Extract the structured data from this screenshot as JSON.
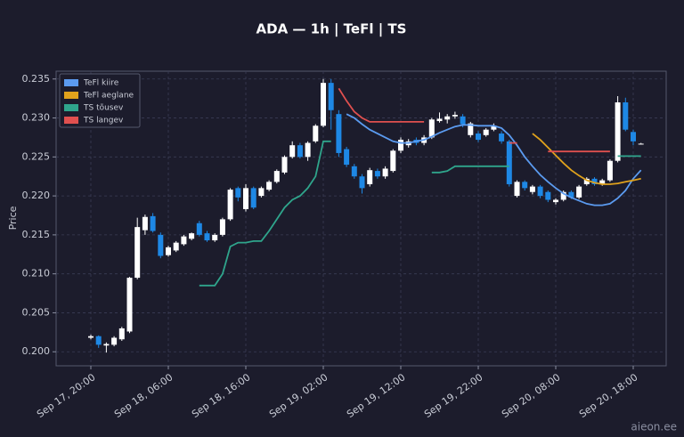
{
  "chart_data": {
    "type": "candlestick",
    "title": "ADA — 1h  |  TeFl  |  TS",
    "ylabel": "Price",
    "watermark": "aieon.ee",
    "x": [
      "Sep 17, 20:00",
      "Sep 17, 21:00",
      "Sep 17, 22:00",
      "Sep 17, 23:00",
      "Sep 18, 00:00",
      "Sep 18, 01:00",
      "Sep 18, 02:00",
      "Sep 18, 03:00",
      "Sep 18, 04:00",
      "Sep 18, 05:00",
      "Sep 18, 06:00",
      "Sep 18, 07:00",
      "Sep 18, 08:00",
      "Sep 18, 09:00",
      "Sep 18, 10:00",
      "Sep 18, 11:00",
      "Sep 18, 12:00",
      "Sep 18, 13:00",
      "Sep 18, 14:00",
      "Sep 18, 15:00",
      "Sep 18, 16:00",
      "Sep 18, 17:00",
      "Sep 18, 18:00",
      "Sep 18, 19:00",
      "Sep 18, 20:00",
      "Sep 18, 21:00",
      "Sep 18, 22:00",
      "Sep 18, 23:00",
      "Sep 19, 00:00",
      "Sep 19, 01:00",
      "Sep 19, 02:00",
      "Sep 19, 03:00",
      "Sep 19, 04:00",
      "Sep 19, 05:00",
      "Sep 19, 06:00",
      "Sep 19, 07:00",
      "Sep 19, 08:00",
      "Sep 19, 09:00",
      "Sep 19, 10:00",
      "Sep 19, 11:00",
      "Sep 19, 12:00",
      "Sep 19, 13:00",
      "Sep 19, 14:00",
      "Sep 19, 15:00",
      "Sep 19, 16:00",
      "Sep 19, 17:00",
      "Sep 19, 18:00",
      "Sep 19, 19:00",
      "Sep 19, 20:00",
      "Sep 19, 21:00",
      "Sep 19, 22:00",
      "Sep 19, 23:00",
      "Sep 20, 00:00",
      "Sep 20, 01:00",
      "Sep 20, 02:00",
      "Sep 20, 03:00",
      "Sep 20, 04:00",
      "Sep 20, 05:00",
      "Sep 20, 06:00",
      "Sep 20, 07:00",
      "Sep 20, 08:00",
      "Sep 20, 09:00",
      "Sep 20, 10:00",
      "Sep 20, 11:00",
      "Sep 20, 12:00",
      "Sep 20, 13:00",
      "Sep 20, 14:00",
      "Sep 20, 15:00",
      "Sep 20, 16:00",
      "Sep 20, 17:00",
      "Sep 20, 18:00",
      "Sep 20, 19:00"
    ],
    "open": [
      0.2018,
      0.202,
      0.2008,
      0.2009,
      0.2016,
      0.2026,
      0.2095,
      0.2156,
      0.2174,
      0.215,
      0.2124,
      0.213,
      0.2138,
      0.2145,
      0.2165,
      0.2152,
      0.2143,
      0.215,
      0.217,
      0.221,
      0.2183,
      0.221,
      0.22,
      0.2208,
      0.2218,
      0.223,
      0.225,
      0.2265,
      0.225,
      0.227,
      0.229,
      0.2345,
      0.2305,
      0.226,
      0.2238,
      0.2225,
      0.2215,
      0.2232,
      0.2225,
      0.2232,
      0.2258,
      0.2265,
      0.2272,
      0.2268,
      0.2275,
      0.2296,
      0.2298,
      0.2302,
      0.2302,
      0.2278,
      0.228,
      0.2278,
      0.2285,
      0.228,
      0.227,
      0.22,
      0.2218,
      0.2205,
      0.2212,
      0.2205,
      0.2192,
      0.2195,
      0.2205,
      0.2198,
      0.2215,
      0.2222,
      0.2215,
      0.222,
      0.2245,
      0.232,
      0.2282,
      0.2267
    ],
    "high": [
      0.2022,
      0.2021,
      0.2012,
      0.202,
      0.2032,
      0.2096,
      0.2172,
      0.2176,
      0.2178,
      0.2153,
      0.2136,
      0.2142,
      0.215,
      0.2153,
      0.2168,
      0.2155,
      0.2152,
      0.2172,
      0.221,
      0.2212,
      0.2215,
      0.2212,
      0.2212,
      0.222,
      0.2234,
      0.2252,
      0.227,
      0.2268,
      0.227,
      0.2292,
      0.235,
      0.235,
      0.231,
      0.2263,
      0.2241,
      0.2228,
      0.2236,
      0.2235,
      0.2238,
      0.226,
      0.2275,
      0.2273,
      0.2275,
      0.2278,
      0.23,
      0.2307,
      0.2305,
      0.2308,
      0.2305,
      0.2295,
      0.2283,
      0.2287,
      0.2293,
      0.2283,
      0.2272,
      0.222,
      0.222,
      0.2214,
      0.2214,
      0.2207,
      0.2197,
      0.2207,
      0.2207,
      0.2214,
      0.2224,
      0.2224,
      0.2222,
      0.2247,
      0.2328,
      0.2326,
      0.2285,
      0.2268
    ],
    "low": [
      0.2016,
      0.2005,
      0.1999,
      0.2007,
      0.2014,
      0.2024,
      0.2093,
      0.215,
      0.2153,
      0.212,
      0.2122,
      0.2128,
      0.2136,
      0.2143,
      0.2148,
      0.2141,
      0.2141,
      0.2148,
      0.2168,
      0.2193,
      0.218,
      0.2183,
      0.2198,
      0.2206,
      0.2216,
      0.2228,
      0.2248,
      0.2248,
      0.2245,
      0.2268,
      0.2288,
      0.2285,
      0.225,
      0.2237,
      0.2222,
      0.2203,
      0.2212,
      0.2222,
      0.2222,
      0.223,
      0.2255,
      0.2262,
      0.2265,
      0.2265,
      0.2273,
      0.2294,
      0.2293,
      0.2299,
      0.2288,
      0.2275,
      0.2269,
      0.2276,
      0.2283,
      0.2267,
      0.2212,
      0.2198,
      0.2207,
      0.2202,
      0.2197,
      0.2192,
      0.2189,
      0.2193,
      0.2196,
      0.2196,
      0.2213,
      0.2213,
      0.2213,
      0.2218,
      0.2243,
      0.2283,
      0.2265,
      0.2266
    ],
    "close": [
      0.202,
      0.2009,
      0.201,
      0.2018,
      0.203,
      0.2095,
      0.216,
      0.2173,
      0.2155,
      0.2123,
      0.2134,
      0.214,
      0.2148,
      0.2152,
      0.215,
      0.2143,
      0.215,
      0.217,
      0.2208,
      0.2198,
      0.221,
      0.2185,
      0.221,
      0.2218,
      0.2232,
      0.225,
      0.2265,
      0.225,
      0.2268,
      0.229,
      0.2345,
      0.231,
      0.2255,
      0.224,
      0.2225,
      0.221,
      0.2233,
      0.2225,
      0.2235,
      0.2258,
      0.2272,
      0.227,
      0.2268,
      0.2275,
      0.2298,
      0.2299,
      0.2302,
      0.2304,
      0.2292,
      0.2293,
      0.2272,
      0.2285,
      0.229,
      0.227,
      0.2215,
      0.2218,
      0.221,
      0.2212,
      0.22,
      0.2195,
      0.2195,
      0.2205,
      0.2198,
      0.2212,
      0.2222,
      0.2215,
      0.222,
      0.2245,
      0.232,
      0.2285,
      0.227,
      0.2267
    ],
    "up_color": "#ffffff",
    "down_color": "#1e88e5",
    "series": [
      {
        "name": "TeFl kiire",
        "color": "#5b9bf0",
        "values": [
          null,
          null,
          null,
          null,
          null,
          null,
          null,
          null,
          null,
          null,
          null,
          null,
          null,
          null,
          null,
          null,
          null,
          null,
          null,
          null,
          null,
          null,
          null,
          null,
          null,
          null,
          null,
          null,
          null,
          null,
          null,
          null,
          null,
          0.2305,
          0.23,
          0.2292,
          0.2285,
          0.228,
          0.2275,
          0.227,
          0.2268,
          0.2268,
          0.227,
          0.2272,
          0.2276,
          0.2281,
          0.2285,
          0.2289,
          0.2291,
          0.2291,
          0.229,
          0.229,
          0.229,
          0.2287,
          0.2278,
          0.2265,
          0.225,
          0.2238,
          0.2227,
          0.2218,
          0.221,
          0.2203,
          0.2198,
          0.2194,
          0.219,
          0.2188,
          0.2188,
          0.219,
          0.2197,
          0.2207,
          0.2222,
          0.2233
        ]
      },
      {
        "name": "TeFl aeglane",
        "color": "#e0a21c",
        "values": [
          null,
          null,
          null,
          null,
          null,
          null,
          null,
          null,
          null,
          null,
          null,
          null,
          null,
          null,
          null,
          null,
          null,
          null,
          null,
          null,
          null,
          null,
          null,
          null,
          null,
          null,
          null,
          null,
          null,
          null,
          null,
          null,
          null,
          null,
          null,
          null,
          null,
          null,
          null,
          null,
          null,
          null,
          null,
          null,
          null,
          null,
          null,
          null,
          null,
          null,
          null,
          null,
          null,
          null,
          null,
          null,
          null,
          0.228,
          0.2272,
          0.2262,
          0.2252,
          0.2242,
          0.2233,
          0.2226,
          0.222,
          0.2217,
          0.2215,
          0.2215,
          0.2216,
          0.2218,
          0.222,
          0.2222
        ]
      },
      {
        "name": "TS tõusev",
        "color": "#2fa58c",
        "values": [
          null,
          null,
          null,
          null,
          null,
          null,
          null,
          null,
          null,
          null,
          null,
          null,
          null,
          null,
          0.2085,
          0.2085,
          0.2085,
          0.21,
          0.2135,
          0.214,
          0.214,
          0.2142,
          0.2142,
          0.2155,
          0.217,
          0.2185,
          0.2195,
          0.22,
          0.221,
          0.2225,
          0.227,
          0.227,
          null,
          null,
          null,
          null,
          null,
          null,
          null,
          null,
          null,
          null,
          null,
          null,
          0.223,
          0.223,
          0.2232,
          0.2238,
          0.2238,
          0.2238,
          0.2238,
          0.2238,
          0.2238,
          0.2238,
          0.2238,
          null,
          null,
          null,
          null,
          null,
          null,
          null,
          null,
          null,
          null,
          null,
          null,
          null,
          0.2251,
          0.2251,
          0.2251,
          0.2251
        ]
      },
      {
        "name": "TS langev",
        "color": "#e0504f",
        "values": [
          null,
          null,
          null,
          null,
          null,
          null,
          null,
          null,
          null,
          null,
          null,
          null,
          null,
          null,
          null,
          null,
          null,
          null,
          null,
          null,
          null,
          null,
          null,
          null,
          null,
          null,
          null,
          null,
          null,
          null,
          null,
          null,
          0.2338,
          0.2322,
          0.2308,
          0.23,
          0.2295,
          0.2295,
          0.2295,
          0.2295,
          0.2295,
          0.2295,
          0.2295,
          0.2295,
          null,
          null,
          null,
          null,
          null,
          null,
          null,
          null,
          null,
          null,
          0.2268,
          0.2268,
          null,
          null,
          null,
          0.2257,
          0.2257,
          0.2257,
          0.2257,
          0.2257,
          0.2257,
          0.2257,
          0.2257,
          0.2257,
          null,
          null,
          null,
          null
        ]
      }
    ],
    "ylim": [
      0.1982,
      0.236
    ],
    "yticks": [
      {
        "value": 0.2,
        "label": "0.200"
      },
      {
        "value": 0.205,
        "label": "0.205"
      },
      {
        "value": 0.21,
        "label": "0.210"
      },
      {
        "value": 0.215,
        "label": "0.215"
      },
      {
        "value": 0.22,
        "label": "0.220"
      },
      {
        "value": 0.225,
        "label": "0.225"
      },
      {
        "value": 0.23,
        "label": "0.230"
      },
      {
        "value": 0.235,
        "label": "0.235"
      }
    ],
    "xticks": [
      "Sep 17, 20:00",
      "Sep 18, 06:00",
      "Sep 18, 16:00",
      "Sep 19, 02:00",
      "Sep 19, 12:00",
      "Sep 19, 22:00",
      "Sep 20, 08:00",
      "Sep 20, 18:00"
    ],
    "grid": true,
    "legend": "upper left"
  }
}
